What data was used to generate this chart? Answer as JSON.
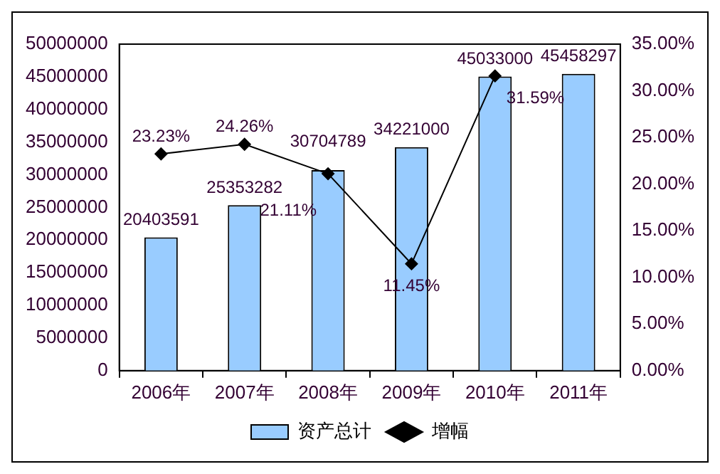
{
  "chart_data": {
    "type": "bar",
    "categories": [
      "2006年",
      "2007年",
      "2008年",
      "2009年",
      "2010年",
      "2011年"
    ],
    "series": [
      {
        "name": "资产总计",
        "color": "#99ccff",
        "values": [
          20403591,
          25353282,
          30704789,
          34221000,
          45033000,
          45458297
        ],
        "value_labels": [
          "20403591",
          "25353282",
          "30704789",
          "34221000",
          "45033000",
          "45458297"
        ]
      },
      {
        "name": "增幅",
        "type": "line",
        "axis": "y2",
        "color": "#000000",
        "values": [
          23.23,
          24.26,
          21.11,
          11.45,
          31.59,
          null
        ],
        "value_labels": [
          "23.23%",
          "24.26%",
          "21.11%",
          "11.45%",
          "31.59%",
          null
        ]
      }
    ],
    "ylim": [
      0,
      50000000
    ],
    "yticks": [
      0,
      5000000,
      10000000,
      15000000,
      20000000,
      25000000,
      30000000,
      35000000,
      40000000,
      45000000,
      50000000
    ],
    "y2lim": [
      0,
      35
    ],
    "y2ticks": [
      {
        "value": 0,
        "label": "0.00%"
      },
      {
        "value": 5,
        "label": "5.00%"
      },
      {
        "value": 10,
        "label": "10.00%"
      },
      {
        "value": 15,
        "label": "15.00%"
      },
      {
        "value": 20,
        "label": "20.00%"
      },
      {
        "value": 25,
        "label": "25.00%"
      },
      {
        "value": 30,
        "label": "30.00%"
      },
      {
        "value": 35,
        "label": "35.00%"
      }
    ],
    "grid": false,
    "legend": "bottom",
    "marker": "diamond",
    "line_style": "solid"
  }
}
